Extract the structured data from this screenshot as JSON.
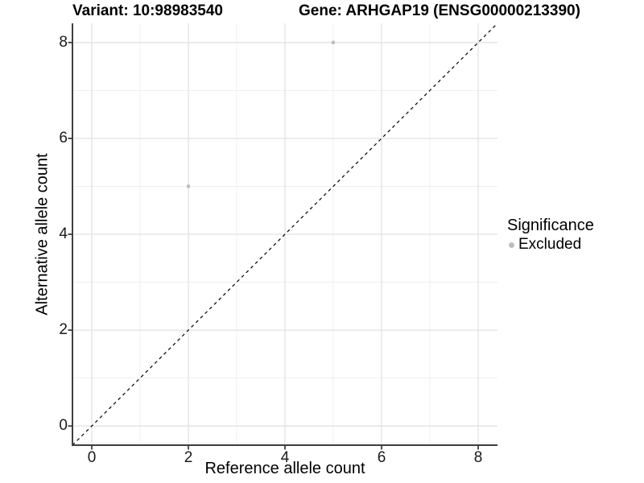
{
  "header": {
    "variant_title": "Variant: 10:98983540",
    "gene_title": "Gene: ARHGAP19 (ENSG00000213390)"
  },
  "chart_data": {
    "type": "scatter",
    "xlabel": "Reference allele count",
    "ylabel": "Alternative allele count",
    "xlim": [
      -0.4,
      8.4
    ],
    "ylim": [
      -0.4,
      8.4
    ],
    "x_ticks": [
      0,
      2,
      4,
      6,
      8
    ],
    "y_ticks": [
      0,
      2,
      4,
      6,
      8
    ],
    "x_minor_ticks": [
      1,
      3,
      5,
      7
    ],
    "y_minor_ticks": [
      1,
      3,
      5,
      7
    ],
    "grid": "on",
    "reference_line": {
      "type": "identity",
      "style": "dashed",
      "color": "#000000"
    },
    "series": [
      {
        "name": "Excluded",
        "marker_color": "#bdbdbd",
        "points": [
          [
            2,
            5
          ],
          [
            5,
            8
          ]
        ]
      }
    ],
    "legend": {
      "position": "right",
      "title": "Significance",
      "items": [
        {
          "label": "Excluded",
          "swatch_color": "#bdbdbd"
        }
      ]
    }
  },
  "colors": {
    "background": "#ffffff",
    "grid_major": "#e2e2e2",
    "grid_minor": "#ececec",
    "axis_line": "#3f3f3f",
    "tick_mark": "#3f3f3f",
    "tick_text": "#1a1a1a"
  }
}
